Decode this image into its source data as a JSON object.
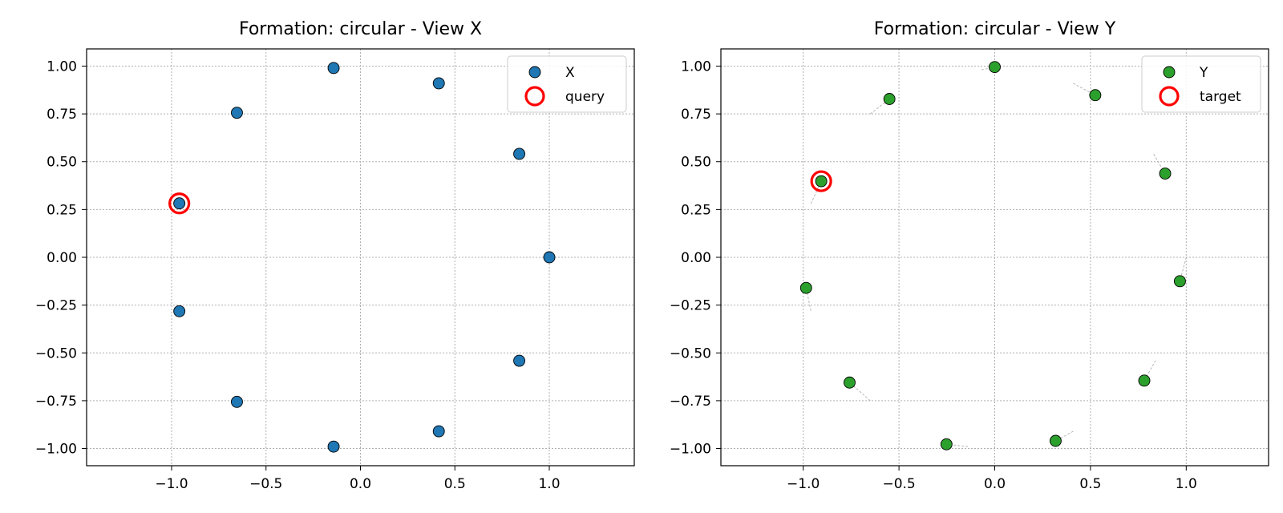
{
  "chart_data": [
    {
      "type": "scatter",
      "title": "Formation: circular - View X",
      "xlabel": "",
      "ylabel": "",
      "xlim": [
        -1.45,
        1.45
      ],
      "ylim": [
        -1.09,
        1.09
      ],
      "xticks": [
        -1.0,
        -0.5,
        0.0,
        0.5,
        1.0
      ],
      "xtick_labels": [
        "−1.0",
        "−0.5",
        "0.0",
        "0.5",
        "1.0"
      ],
      "yticks": [
        1.0,
        0.75,
        0.5,
        0.25,
        0.0,
        -0.25,
        -0.5,
        -0.75,
        -1.0
      ],
      "ytick_labels": [
        "1.00",
        "0.75",
        "0.50",
        "0.25",
        "0.00",
        "−0.25",
        "−0.50",
        "−0.75",
        "−1.00"
      ],
      "grid": true,
      "legend_position": "top-right",
      "series": [
        {
          "name": "X",
          "color": "#1f77b4",
          "x": [
            1.0,
            0.841,
            0.415,
            -0.142,
            -0.654,
            -0.959,
            -0.959,
            -0.654,
            -0.142,
            0.415,
            0.841
          ],
          "y": [
            0.0,
            0.541,
            0.91,
            0.99,
            0.756,
            0.282,
            -0.282,
            -0.756,
            -0.99,
            -0.91,
            -0.541
          ]
        }
      ],
      "highlight": {
        "name": "query",
        "color": "#ff0000",
        "x": -0.959,
        "y": 0.282
      }
    },
    {
      "type": "scatter",
      "title": "Formation: circular - View Y",
      "xlabel": "",
      "ylabel": "",
      "xlim": [
        -1.43,
        1.43
      ],
      "ylim": [
        -1.09,
        1.09
      ],
      "xticks": [
        -1.0,
        -0.5,
        0.0,
        0.5,
        1.0
      ],
      "xtick_labels": [
        "−1.0",
        "−0.5",
        "0.0",
        "0.5",
        "1.0"
      ],
      "yticks": [
        1.0,
        0.75,
        0.5,
        0.25,
        0.0,
        -0.25,
        -0.5,
        -0.75,
        -1.0
      ],
      "ytick_labels": [
        "1.00",
        "0.75",
        "0.50",
        "0.25",
        "0.00",
        "−0.25",
        "−0.50",
        "−0.75",
        "−1.00"
      ],
      "grid": true,
      "legend_position": "top-right",
      "series": [
        {
          "name": "Y",
          "color": "#2ca02c",
          "x": [
            0.0,
            0.525,
            0.89,
            0.967,
            0.781,
            0.318,
            -0.252,
            -0.758,
            -0.985,
            -0.906,
            -0.55
          ],
          "y": [
            0.995,
            0.848,
            0.438,
            -0.125,
            -0.645,
            -0.96,
            -0.978,
            -0.655,
            -0.16,
            0.398,
            0.828
          ]
        }
      ],
      "highlight": {
        "name": "target",
        "color": "#ff0000",
        "x": -0.906,
        "y": 0.398
      },
      "connectors": {
        "color": "#b0b0b0",
        "from_x": [
          -0.07,
          0.41,
          0.83,
          1.0,
          0.84,
          0.41,
          -0.14,
          -0.65,
          -0.96,
          -0.96,
          -0.65
        ],
        "from_y": [
          0.98,
          0.91,
          0.54,
          0.0,
          -0.54,
          -0.91,
          -0.99,
          -0.75,
          -0.28,
          0.28,
          0.75
        ]
      }
    }
  ]
}
